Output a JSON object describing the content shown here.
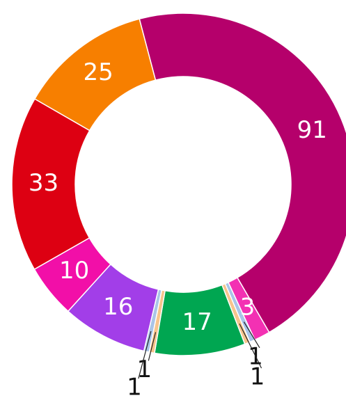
{
  "chart_data": {
    "type": "donut",
    "values": [
      91,
      3,
      1,
      1,
      17,
      1,
      1,
      16,
      10,
      33,
      25
    ],
    "colors": [
      "#b5006b",
      "#f331b3",
      "#a9c4e8",
      "#f7c48c",
      "#00a651",
      "#f7c48c",
      "#a9c4e8",
      "#a23ee8",
      "#f20fa8",
      "#dd0012",
      "#f77f00"
    ]
  }
}
